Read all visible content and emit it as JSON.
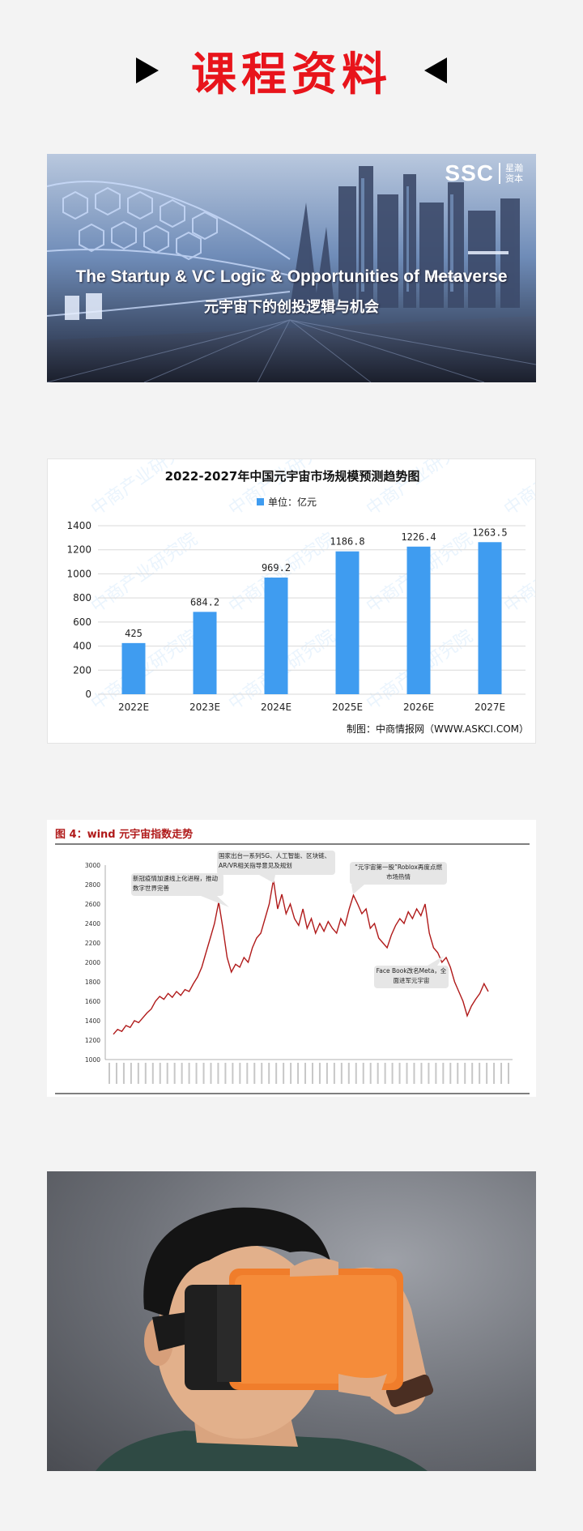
{
  "header": {
    "title": "课程资料"
  },
  "banner": {
    "logo_text": "SSC",
    "logo_sub": "星瀚资本",
    "en_title": "The Startup & VC Logic & Opportunities of Metaverse",
    "cn_title": "元宇宙下的创投逻辑与机会"
  },
  "bar_chart": {
    "chart_data": {
      "type": "bar",
      "title": "2022-2027年中国元宇宙市场规模预测趋势图",
      "legend": "单位：亿元",
      "categories": [
        "2022E",
        "2023E",
        "2024E",
        "2025E",
        "2026E",
        "2027E"
      ],
      "values": [
        425,
        684.2,
        969.2,
        1186.8,
        1226.4,
        1263.5
      ],
      "value_labels": [
        "425",
        "684.2",
        "969.2",
        "1186.8",
        "1226.4",
        "1263.5"
      ],
      "y_ticks": [
        "0",
        "200",
        "400",
        "600",
        "800",
        "1000",
        "1200",
        "1400"
      ],
      "ylim": [
        0,
        1400
      ],
      "grid": true,
      "source": "制图：中商情报网（WWW.ASKCI.COM）",
      "watermark": "中商产业研究院",
      "color": "#3f9cf0"
    }
  },
  "line_chart": {
    "chart_data": {
      "type": "line",
      "title": "图 4：wind 元宇宙指数走势",
      "y_ticks": [
        "1000",
        "1200",
        "1400",
        "1600",
        "1800",
        "2000",
        "2200",
        "2400",
        "2600",
        "2800",
        "3000"
      ],
      "ylim": [
        1000,
        3000
      ],
      "series": [
        {
          "values": [
            1260,
            1310,
            1290,
            1350,
            1330,
            1400,
            1380,
            1430,
            1480,
            1520,
            1600,
            1650,
            1620,
            1680,
            1640,
            1700,
            1660,
            1720,
            1700,
            1780,
            1850,
            1950,
            2100,
            2250,
            2400,
            2620,
            2350,
            2050,
            1900,
            1980,
            1950,
            2050,
            2000,
            2150,
            2250,
            2300,
            2450,
            2600,
            2850,
            2550,
            2700,
            2500,
            2600,
            2450,
            2380,
            2550,
            2350,
            2450,
            2300,
            2400,
            2320,
            2420,
            2350,
            2300,
            2450,
            2380,
            2550,
            2690,
            2600,
            2500,
            2550,
            2350,
            2400,
            2250,
            2200,
            2150,
            2280,
            2380,
            2450,
            2400,
            2520,
            2450,
            2550,
            2480,
            2600,
            2300,
            2150,
            2100,
            2000,
            2050,
            1950,
            1800,
            1700,
            1600,
            1450,
            1550,
            1620,
            1680,
            1780,
            1700
          ]
        }
      ],
      "annotations": [
        "新冠疫情加速线上化进程，推动数字世界完善",
        "国家出台一系列5G、人工智能、区块链、AR/VR相关指导意见及规划",
        "“元宇宙第一股”Roblox再度点燃市场热情",
        "Face Book改名Meta，全面进军元宇宙"
      ],
      "color": "#b01a1a"
    }
  },
  "photo": {
    "subject": "vr-headset-user"
  }
}
